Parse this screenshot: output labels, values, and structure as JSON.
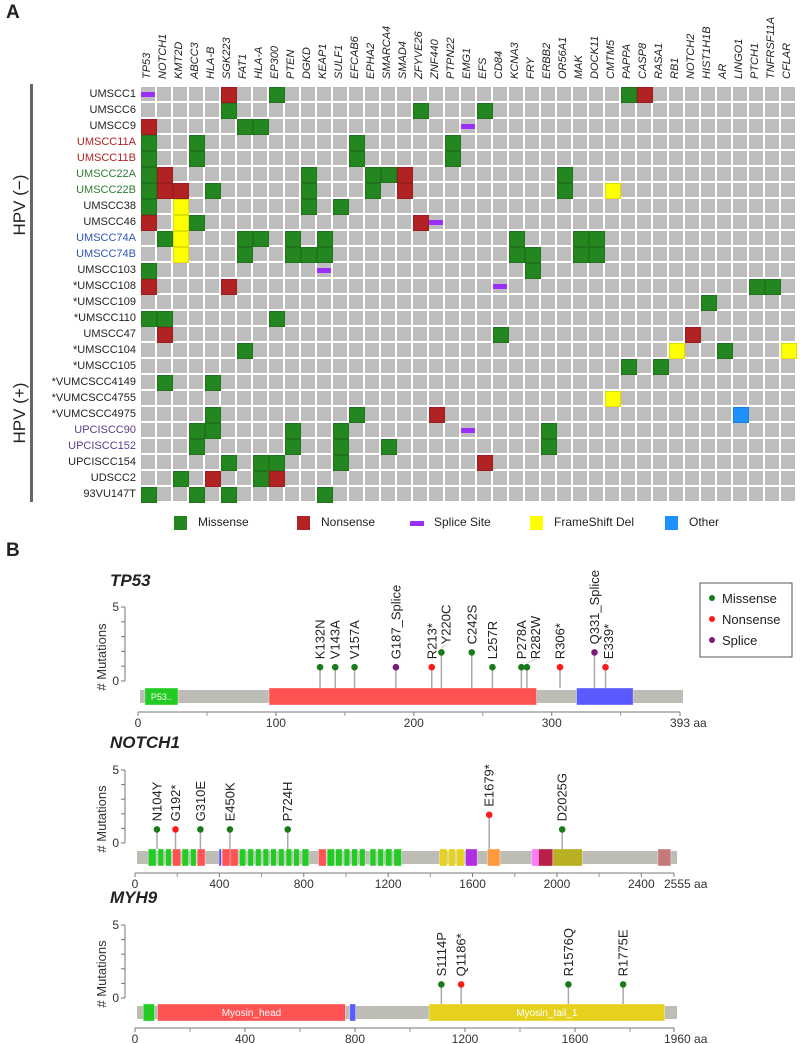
{
  "panel_a": {
    "letter": "A",
    "genes": [
      "TP53",
      "NOTCH1",
      "KMT2D",
      "ABCC3",
      "HLA-B",
      "SGK223",
      "FAT1",
      "HLA-A",
      "EP300",
      "PTEN",
      "DGKD",
      "KEAP1",
      "SULF1",
      "EFCAB6",
      "EPHA2",
      "SMARCA4",
      "SMAD4",
      "ZFYVE26",
      "ZNF440",
      "PTPN22",
      "EMG1",
      "EFS",
      "CD84",
      "KCNA3",
      "FRY",
      "ERBB2",
      "OR56A1",
      "MAK",
      "DOCK11",
      "CMTM5",
      "PAPPA",
      "CASP8",
      "RASA1",
      "RB1",
      "NOTCH2",
      "HIST1H1B",
      "AR",
      "LINGO1",
      "PTCH1",
      "TNFRSF11A",
      "CFLAR"
    ],
    "groups": [
      {
        "label": "HPV (−)"
      },
      {
        "label": "HPV (+)"
      }
    ],
    "samples": [
      {
        "name": "UMSCC1",
        "color": "#222222",
        "group": 0,
        "muts": {
          "TP53": "S",
          "SGK223": "N",
          "EP300": "M",
          "PAPPA": "M",
          "CASP8": "N"
        }
      },
      {
        "name": "UMSCC6",
        "color": "#222222",
        "group": 0,
        "muts": {
          "SGK223": "M",
          "ZFYVE26": "M",
          "EFS": "M"
        }
      },
      {
        "name": "UMSCC9",
        "color": "#222222",
        "group": 0,
        "muts": {
          "TP53": "N",
          "FAT1": "M",
          "HLA-A": "M",
          "EMG1": "S"
        }
      },
      {
        "name": "UMSCC11A",
        "color": "#b22222",
        "group": 0,
        "muts": {
          "TP53": "M",
          "ABCC3": "M",
          "EFCAB6": "M",
          "PTPN22": "M"
        }
      },
      {
        "name": "UMSCC11B",
        "color": "#b22222",
        "group": 0,
        "muts": {
          "TP53": "M",
          "ABCC3": "M",
          "EFCAB6": "M",
          "PTPN22": "M"
        }
      },
      {
        "name": "UMSCC22A",
        "color": "#2e7d32",
        "group": 0,
        "muts": {
          "TP53": "M",
          "NOTCH1": "N",
          "DGKD": "M",
          "EPHA2": "M",
          "SMARCA4": "M",
          "SMAD4": "N",
          "OR56A1": "M"
        }
      },
      {
        "name": "UMSCC22B",
        "color": "#2e7d32",
        "group": 0,
        "muts": {
          "TP53": "M",
          "NOTCH1": "N",
          "KMT2D": "N",
          "HLA-B": "M",
          "DGKD": "M",
          "EPHA2": "M",
          "SMAD4": "N",
          "OR56A1": "M",
          "CMTM5": "F"
        }
      },
      {
        "name": "UMSCC38",
        "color": "#222222",
        "group": 0,
        "muts": {
          "TP53": "M",
          "KMT2D": "F",
          "DGKD": "M",
          "SULF1": "M"
        }
      },
      {
        "name": "UMSCC46",
        "color": "#222222",
        "group": 0,
        "muts": {
          "TP53": "N",
          "KMT2D": "F",
          "ABCC3": "M",
          "ZFYVE26": "N",
          "ZNF440": "S"
        }
      },
      {
        "name": "UMSCC74A",
        "color": "#2f55b5",
        "group": 0,
        "muts": {
          "NOTCH1": "M",
          "KMT2D": "F",
          "FAT1": "M",
          "HLA-A": "M",
          "PTEN": "M",
          "KEAP1": "M",
          "KCNA3": "M",
          "MAK": "M",
          "DOCK11": "M"
        }
      },
      {
        "name": "UMSCC74B",
        "color": "#2f55b5",
        "group": 0,
        "muts": {
          "KMT2D": "F",
          "FAT1": "M",
          "PTEN": "M",
          "DGKD": "M",
          "KEAP1": "M",
          "KCNA3": "M",
          "FRY": "M",
          "MAK": "M",
          "DOCK11": "M"
        }
      },
      {
        "name": "UMSCC103",
        "color": "#222222",
        "group": 0,
        "muts": {
          "TP53": "M",
          "KEAP1": "S",
          "FRY": "M"
        }
      },
      {
        "name": "*UMSCC108",
        "color": "#222222",
        "group": 0,
        "muts": {
          "TP53": "N",
          "SGK223": "N",
          "CD84": "S",
          "PTCH1": "M",
          "TNFRSF11A": "M"
        }
      },
      {
        "name": "*UMSCC109",
        "color": "#222222",
        "group": 0,
        "muts": {
          "HIST1H1B": "M"
        }
      },
      {
        "name": "*UMSCC110",
        "color": "#222222",
        "group": 0,
        "muts": {
          "TP53": "M",
          "NOTCH1": "M",
          "EP300": "M"
        }
      },
      {
        "name": "UMSCC47",
        "color": "#222222",
        "group": 1,
        "muts": {
          "NOTCH1": "N",
          "CD84": "M",
          "NOTCH2": "N"
        }
      },
      {
        "name": "*UMSCC104",
        "color": "#222222",
        "group": 1,
        "muts": {
          "FAT1": "M",
          "RB1": "F",
          "AR": "M",
          "CFLAR": "F"
        }
      },
      {
        "name": "*UMSCC105",
        "color": "#222222",
        "group": 1,
        "muts": {
          "PAPPA": "M",
          "RASA1": "M"
        }
      },
      {
        "name": "*VUMCSCC4149",
        "color": "#222222",
        "group": 1,
        "muts": {
          "NOTCH1": "M",
          "HLA-B": "M"
        }
      },
      {
        "name": "*VUMCSCC4755",
        "color": "#222222",
        "group": 1,
        "muts": {
          "CMTM5": "F"
        }
      },
      {
        "name": "*VUMCSCC4975",
        "color": "#222222",
        "group": 1,
        "muts": {
          "HLA-B": "M",
          "EFCAB6": "M",
          "ZNF440": "N",
          "LINGO1": "O"
        }
      },
      {
        "name": "UPCISCC90",
        "color": "#5b3c8c",
        "group": 1,
        "muts": {
          "ABCC3": "M",
          "HLA-B": "M",
          "PTEN": "M",
          "SULF1": "M",
          "EMG1": "S",
          "ERBB2": "M"
        }
      },
      {
        "name": "UPCISCC152",
        "color": "#5b3c8c",
        "group": 1,
        "muts": {
          "ABCC3": "M",
          "PTEN": "M",
          "SULF1": "M",
          "SMARCA4": "M",
          "ERBB2": "M"
        }
      },
      {
        "name": "UPCISCC154",
        "color": "#222222",
        "group": 1,
        "muts": {
          "SGK223": "M",
          "HLA-A": "M",
          "EP300": "M",
          "SULF1": "M",
          "EFS": "N"
        }
      },
      {
        "name": "UDSCC2",
        "color": "#222222",
        "group": 1,
        "muts": {
          "KMT2D": "M",
          "HLA-B": "N",
          "HLA-A": "M",
          "EP300": "N"
        }
      },
      {
        "name": "93VU147T",
        "color": "#222222",
        "group": 1,
        "muts": {
          "TP53": "M",
          "ABCC3": "M",
          "SGK223": "M",
          "KEAP1": "M"
        }
      }
    ],
    "mutation_types": {
      "M": {
        "label": "Missense",
        "color": "#23861f"
      },
      "N": {
        "label": "Nonsense",
        "color": "#b22222"
      },
      "S": {
        "label": "Splice Site",
        "color": "#9b30ff"
      },
      "F": {
        "label": "FrameShift Del",
        "color": "#ffff00"
      },
      "O": {
        "label": "Other",
        "color": "#1e90ff"
      }
    },
    "empty_color": "#bdbdbd",
    "legend": [
      "Missense",
      "Nonsense",
      "Splice Site",
      "FrameShift Del",
      "Other"
    ]
  },
  "panel_b": {
    "letter": "B",
    "y_axis_label": "# Mutations",
    "y_ticks": [
      "0",
      "5"
    ],
    "legend": [
      {
        "label": "Missense",
        "color": "#1a7a1a"
      },
      {
        "label": "Nonsense",
        "color": "#ff1a1a"
      },
      {
        "label": "Splice",
        "color": "#7a1a7a"
      }
    ],
    "mutation_colors": {
      "M": "#1a7a1a",
      "N": "#ff1a1a",
      "S": "#7a1a7a"
    },
    "backbone_color": "#bdbdb5",
    "proteins": [
      {
        "name": "TP53",
        "length": 393,
        "length_label": "393 aa",
        "ticks": [
          "0",
          "100",
          "200",
          "300"
        ],
        "tick_values": [
          0,
          100,
          200,
          300
        ],
        "minor_ticks": [
          50,
          150,
          250,
          350
        ],
        "domains": [
          {
            "start": 5,
            "end": 29,
            "color": "#22cc22",
            "label": "P53.."
          },
          {
            "start": 95,
            "end": 289,
            "color": "#ff5252",
            "label": ""
          },
          {
            "start": 318,
            "end": 359,
            "color": "#5a5aff",
            "label": ""
          }
        ],
        "mutations": [
          {
            "pos": 132,
            "count": 1,
            "type": "M",
            "label": "K132N"
          },
          {
            "pos": 143,
            "count": 1,
            "type": "M",
            "label": "V143A"
          },
          {
            "pos": 157,
            "count": 1,
            "type": "M",
            "label": "V157A"
          },
          {
            "pos": 187,
            "count": 1,
            "type": "S",
            "label": "G187_Splice"
          },
          {
            "pos": 213,
            "count": 1,
            "type": "N",
            "label": "R213*"
          },
          {
            "pos": 220,
            "count": 2,
            "type": "M",
            "label": "Y220C"
          },
          {
            "pos": 242,
            "count": 2,
            "type": "M",
            "label": "C242S"
          },
          {
            "pos": 257,
            "count": 1,
            "type": "M",
            "label": "L257R"
          },
          {
            "pos": 278,
            "count": 1,
            "type": "M",
            "label": "P278A"
          },
          {
            "pos": 282,
            "count": 1,
            "type": "M",
            "label": "R282W"
          },
          {
            "pos": 306,
            "count": 1,
            "type": "N",
            "label": "R306*"
          },
          {
            "pos": 331,
            "count": 2,
            "type": "S",
            "label": "Q331_Splice"
          },
          {
            "pos": 339,
            "count": 1,
            "type": "N",
            "label": "E339*"
          }
        ]
      },
      {
        "name": "NOTCH1",
        "length": 2555,
        "length_label": "2555 aa",
        "ticks": [
          "0",
          "400",
          "800",
          "1200",
          "1600",
          "2000",
          "2400"
        ],
        "tick_values": [
          0,
          400,
          800,
          1200,
          1600,
          2000,
          2400
        ],
        "minor_ticks": [
          200,
          600,
          1000,
          1400,
          1800,
          2200
        ],
        "domains": [
          {
            "start": 63,
            "end": 100,
            "color": "#22cc22"
          },
          {
            "start": 109,
            "end": 136,
            "color": "#22cc22"
          },
          {
            "start": 145,
            "end": 172,
            "color": "#22cc22"
          },
          {
            "start": 178,
            "end": 217,
            "color": "#ff5252"
          },
          {
            "start": 223,
            "end": 254,
            "color": "#22cc22"
          },
          {
            "start": 263,
            "end": 290,
            "color": "#22cc22"
          },
          {
            "start": 295,
            "end": 332,
            "color": "#ff5252"
          },
          {
            "start": 399,
            "end": 408,
            "color": "#3a3aff"
          },
          {
            "start": 413,
            "end": 451,
            "color": "#ff5252"
          },
          {
            "start": 451,
            "end": 489,
            "color": "#ff5252"
          },
          {
            "start": 495,
            "end": 525,
            "color": "#22cc22"
          },
          {
            "start": 535,
            "end": 562,
            "color": "#22cc22"
          },
          {
            "start": 571,
            "end": 598,
            "color": "#22cc22"
          },
          {
            "start": 607,
            "end": 634,
            "color": "#22cc22"
          },
          {
            "start": 643,
            "end": 670,
            "color": "#22cc22"
          },
          {
            "start": 680,
            "end": 707,
            "color": "#22cc22"
          },
          {
            "start": 716,
            "end": 743,
            "color": "#22cc22"
          },
          {
            "start": 752,
            "end": 779,
            "color": "#22cc22"
          },
          {
            "start": 792,
            "end": 824,
            "color": "#22cc22"
          },
          {
            "start": 870,
            "end": 906,
            "color": "#ff5252"
          },
          {
            "start": 911,
            "end": 946,
            "color": "#22cc22"
          },
          {
            "start": 951,
            "end": 982,
            "color": "#22cc22"
          },
          {
            "start": 991,
            "end": 1018,
            "color": "#22cc22"
          },
          {
            "start": 1027,
            "end": 1055,
            "color": "#22cc22"
          },
          {
            "start": 1064,
            "end": 1091,
            "color": "#22cc22"
          },
          {
            "start": 1114,
            "end": 1142,
            "color": "#22cc22"
          },
          {
            "start": 1151,
            "end": 1178,
            "color": "#22cc22"
          },
          {
            "start": 1187,
            "end": 1218,
            "color": "#22cc22"
          },
          {
            "start": 1227,
            "end": 1263,
            "color": "#22cc22"
          },
          {
            "start": 1444,
            "end": 1480,
            "color": "#e6d21e"
          },
          {
            "start": 1486,
            "end": 1518,
            "color": "#e6d21e"
          },
          {
            "start": 1524,
            "end": 1560,
            "color": "#e6d21e"
          },
          {
            "start": 1567,
            "end": 1622,
            "color": "#b02ee0"
          },
          {
            "start": 1671,
            "end": 1730,
            "color": "#ff9a3c"
          },
          {
            "start": 1881,
            "end": 1912,
            "color": "#ff7aff"
          },
          {
            "start": 1912,
            "end": 1981,
            "color": "#b8204a"
          },
          {
            "start": 1981,
            "end": 2120,
            "color": "#b8b020"
          },
          {
            "start": 2479,
            "end": 2540,
            "color": "#c47a7a"
          }
        ],
        "mutations": [
          {
            "pos": 104,
            "count": 1,
            "type": "M",
            "label": "N104Y"
          },
          {
            "pos": 192,
            "count": 1,
            "type": "N",
            "label": "G192*"
          },
          {
            "pos": 310,
            "count": 1,
            "type": "M",
            "label": "G310E"
          },
          {
            "pos": 450,
            "count": 1,
            "type": "M",
            "label": "E450K"
          },
          {
            "pos": 724,
            "count": 1,
            "type": "M",
            "label": "P724H"
          },
          {
            "pos": 1679,
            "count": 2,
            "type": "N",
            "label": "E1679*"
          },
          {
            "pos": 2025,
            "count": 1,
            "type": "M",
            "label": "D2025G"
          }
        ]
      },
      {
        "name": "MYH9",
        "length": 1960,
        "length_label": "1960 aa",
        "ticks": [
          "0",
          "400",
          "800",
          "1200",
          "1600"
        ],
        "tick_values": [
          0,
          400,
          800,
          1200,
          1600
        ],
        "minor_ticks": [
          200,
          600,
          1000,
          1400,
          1800
        ],
        "domains": [
          {
            "start": 30,
            "end": 71,
            "color": "#22cc22",
            "label": ""
          },
          {
            "start": 82,
            "end": 765,
            "color": "#ff5252",
            "label": "Myosin_head"
          },
          {
            "start": 781,
            "end": 802,
            "color": "#5a5aff",
            "label": ""
          },
          {
            "start": 1069,
            "end": 1926,
            "color": "#e6d21e",
            "label": "Myosin_tail_1"
          }
        ],
        "mutations": [
          {
            "pos": 1114,
            "count": 1,
            "type": "M",
            "label": "S1114P"
          },
          {
            "pos": 1186,
            "count": 1,
            "type": "N",
            "label": "Q1186*"
          },
          {
            "pos": 1576,
            "count": 1,
            "type": "M",
            "label": "R1576Q"
          },
          {
            "pos": 1775,
            "count": 1,
            "type": "M",
            "label": "R1775E"
          }
        ]
      }
    ]
  }
}
